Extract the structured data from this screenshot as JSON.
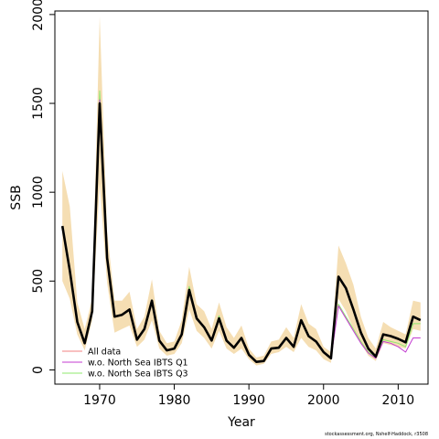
{
  "chart_data": {
    "type": "line",
    "xlabel": "Year",
    "ylabel": "SSB",
    "xlim": [
      1964,
      2014
    ],
    "ylim": [
      -80,
      2020
    ],
    "xticks": [
      1970,
      1980,
      1990,
      2000,
      2010
    ],
    "yticks": [
      0,
      500,
      1000,
      1500,
      2000
    ],
    "x": [
      1965,
      1966,
      1967,
      1968,
      1969,
      1970,
      1971,
      1972,
      1973,
      1974,
      1975,
      1976,
      1977,
      1978,
      1979,
      1980,
      1981,
      1982,
      1983,
      1984,
      1985,
      1986,
      1987,
      1988,
      1989,
      1990,
      1991,
      1992,
      1993,
      1994,
      1995,
      1996,
      1997,
      1998,
      1999,
      2000,
      2001,
      2002,
      2003,
      2004,
      2005,
      2006,
      2007,
      2008,
      2009,
      2010,
      2011,
      2012,
      2013
    ],
    "confidence_band": {
      "lower": [
        500,
        400,
        200,
        110,
        280,
        1050,
        490,
        210,
        230,
        250,
        130,
        170,
        280,
        120,
        80,
        90,
        150,
        340,
        220,
        180,
        120,
        220,
        120,
        90,
        120,
        60,
        25,
        35,
        90,
        100,
        130,
        100,
        180,
        130,
        110,
        60,
        40,
        400,
        330,
        230,
        150,
        80,
        50,
        150,
        140,
        130,
        120,
        230,
        220
      ],
      "upper": [
        1120,
        920,
        380,
        230,
        400,
        1990,
        780,
        390,
        390,
        440,
        230,
        300,
        510,
        220,
        150,
        160,
        280,
        580,
        370,
        330,
        230,
        380,
        240,
        180,
        250,
        120,
        70,
        80,
        160,
        170,
        240,
        180,
        370,
        260,
        230,
        130,
        100,
        700,
        600,
        480,
        300,
        180,
        120,
        270,
        240,
        220,
        200,
        390,
        380
      ]
    },
    "series": [
      {
        "name": "All data",
        "color": "#000000",
        "values": [
          810,
          560,
          270,
          150,
          330,
          1500,
          630,
          300,
          310,
          340,
          170,
          230,
          390,
          165,
          110,
          120,
          200,
          450,
          290,
          240,
          165,
          290,
          165,
          125,
          180,
          85,
          45,
          50,
          120,
          125,
          180,
          130,
          280,
          190,
          160,
          100,
          65,
          525,
          460,
          340,
          210,
          120,
          75,
          200,
          190,
          175,
          155,
          300,
          280
        ]
      },
      {
        "name": "w.o. North Sea IBTS Q1",
        "color": "#c33bd1",
        "values": [
          800,
          550,
          265,
          148,
          325,
          1520,
          625,
          298,
          308,
          338,
          168,
          228,
          385,
          162,
          108,
          118,
          198,
          445,
          288,
          238,
          163,
          288,
          163,
          123,
          178,
          84,
          44,
          49,
          118,
          123,
          178,
          128,
          275,
          188,
          158,
          98,
          63,
          360,
          290,
          220,
          150,
          95,
          65,
          160,
          150,
          130,
          100,
          180,
          180
        ]
      },
      {
        "name": "w.o. North Sea IBTS Q3",
        "color": "#8fe86e",
        "values": [
          805,
          555,
          268,
          152,
          335,
          1570,
          640,
          302,
          312,
          342,
          172,
          232,
          395,
          168,
          112,
          122,
          202,
          470,
          292,
          242,
          168,
          305,
          168,
          127,
          183,
          86,
          46,
          51,
          121,
          126,
          182,
          131,
          282,
          192,
          162,
          101,
          66,
          370,
          300,
          230,
          160,
          100,
          70,
          170,
          160,
          150,
          130,
          260,
          260
        ]
      }
    ],
    "legend": {
      "position": "bottom-left"
    },
    "band_color": "#f5deb3",
    "credit": "stockassessment.org, Nshelf-Haddock, r3508"
  }
}
